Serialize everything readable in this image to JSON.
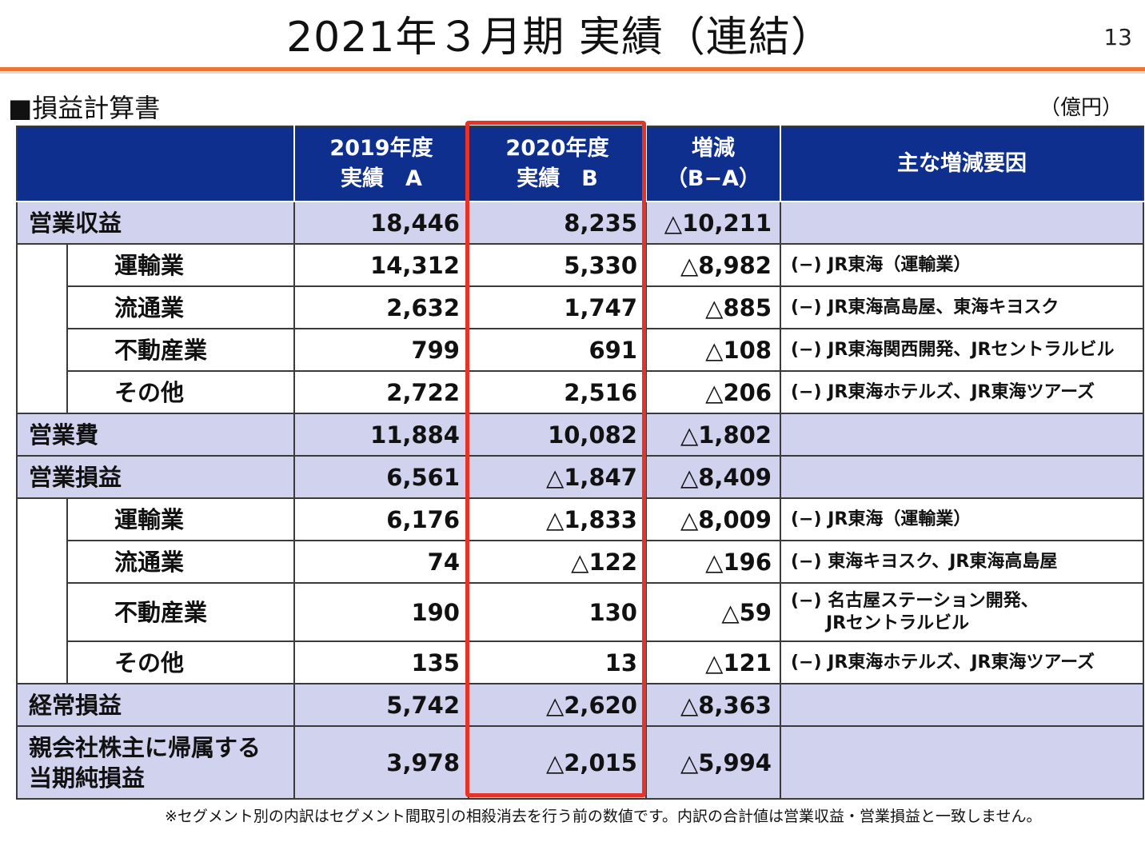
{
  "header": {
    "title": "2021年３月期 実績（連結）",
    "page_number": "13"
  },
  "section": {
    "heading": "■損益計算書",
    "unit": "（億円）"
  },
  "table": {
    "columns": [
      "",
      "2019年度\n実績　A",
      "2020年度\n実績　B",
      "増減\n（B−A）",
      "主な増減要因"
    ],
    "rows": [
      {
        "label": "営業収益",
        "level": "main",
        "a": "18,446",
        "b": "8,235",
        "diff": "△10,211",
        "reason": ""
      },
      {
        "label": "運輸業",
        "level": "sub",
        "a": "14,312",
        "b": "5,330",
        "diff": "△8,982",
        "reason": "(−) JR東海（運輸業）"
      },
      {
        "label": "流通業",
        "level": "sub",
        "a": "2,632",
        "b": "1,747",
        "diff": "△885",
        "reason": "(−) JR東海高島屋、東海キヨスク"
      },
      {
        "label": "不動産業",
        "level": "sub",
        "a": "799",
        "b": "691",
        "diff": "△108",
        "reason": "(−) JR東海関西開発、JRセントラルビル"
      },
      {
        "label": "その他",
        "level": "sub",
        "a": "2,722",
        "b": "2,516",
        "diff": "△206",
        "reason": "(−) JR東海ホテルズ、JR東海ツアーズ"
      },
      {
        "label": "営業費",
        "level": "main",
        "a": "11,884",
        "b": "10,082",
        "diff": "△1,802",
        "reason": ""
      },
      {
        "label": "営業損益",
        "level": "main",
        "a": "6,561",
        "b": "△1,847",
        "diff": "△8,409",
        "reason": ""
      },
      {
        "label": "運輸業",
        "level": "sub",
        "a": "6,176",
        "b": "△1,833",
        "diff": "△8,009",
        "reason": "(−) JR東海（運輸業）"
      },
      {
        "label": "流通業",
        "level": "sub",
        "a": "74",
        "b": "△122",
        "diff": "△196",
        "reason": "(−) 東海キヨスク、JR東海高島屋"
      },
      {
        "label": "不動産業",
        "level": "sub",
        "a": "190",
        "b": "130",
        "diff": "△59",
        "reason": "(−) 名古屋ステーション開発、\n　　JRセントラルビル"
      },
      {
        "label": "その他",
        "level": "sub",
        "a": "135",
        "b": "13",
        "diff": "△121",
        "reason": "(−) JR東海ホテルズ、JR東海ツアーズ"
      },
      {
        "label": "経常損益",
        "level": "main",
        "a": "5,742",
        "b": "△2,620",
        "diff": "△8,363",
        "reason": ""
      },
      {
        "label": "親会社株主に帰属する\n当期純損益",
        "level": "main",
        "a": "3,978",
        "b": "△2,015",
        "diff": "△5,994",
        "reason": ""
      }
    ]
  },
  "footnote": "※セグメント別の内訳はセグメント間取引の相殺消去を行う前の数値です。内訳の合計値は営業収益・営業損益と一致しません。",
  "colors": {
    "header_bg": "#0E2F8E",
    "main_row_bg": "#D0D2EE",
    "highlight_border": "#E63329",
    "title_rule": "#EE7330"
  }
}
